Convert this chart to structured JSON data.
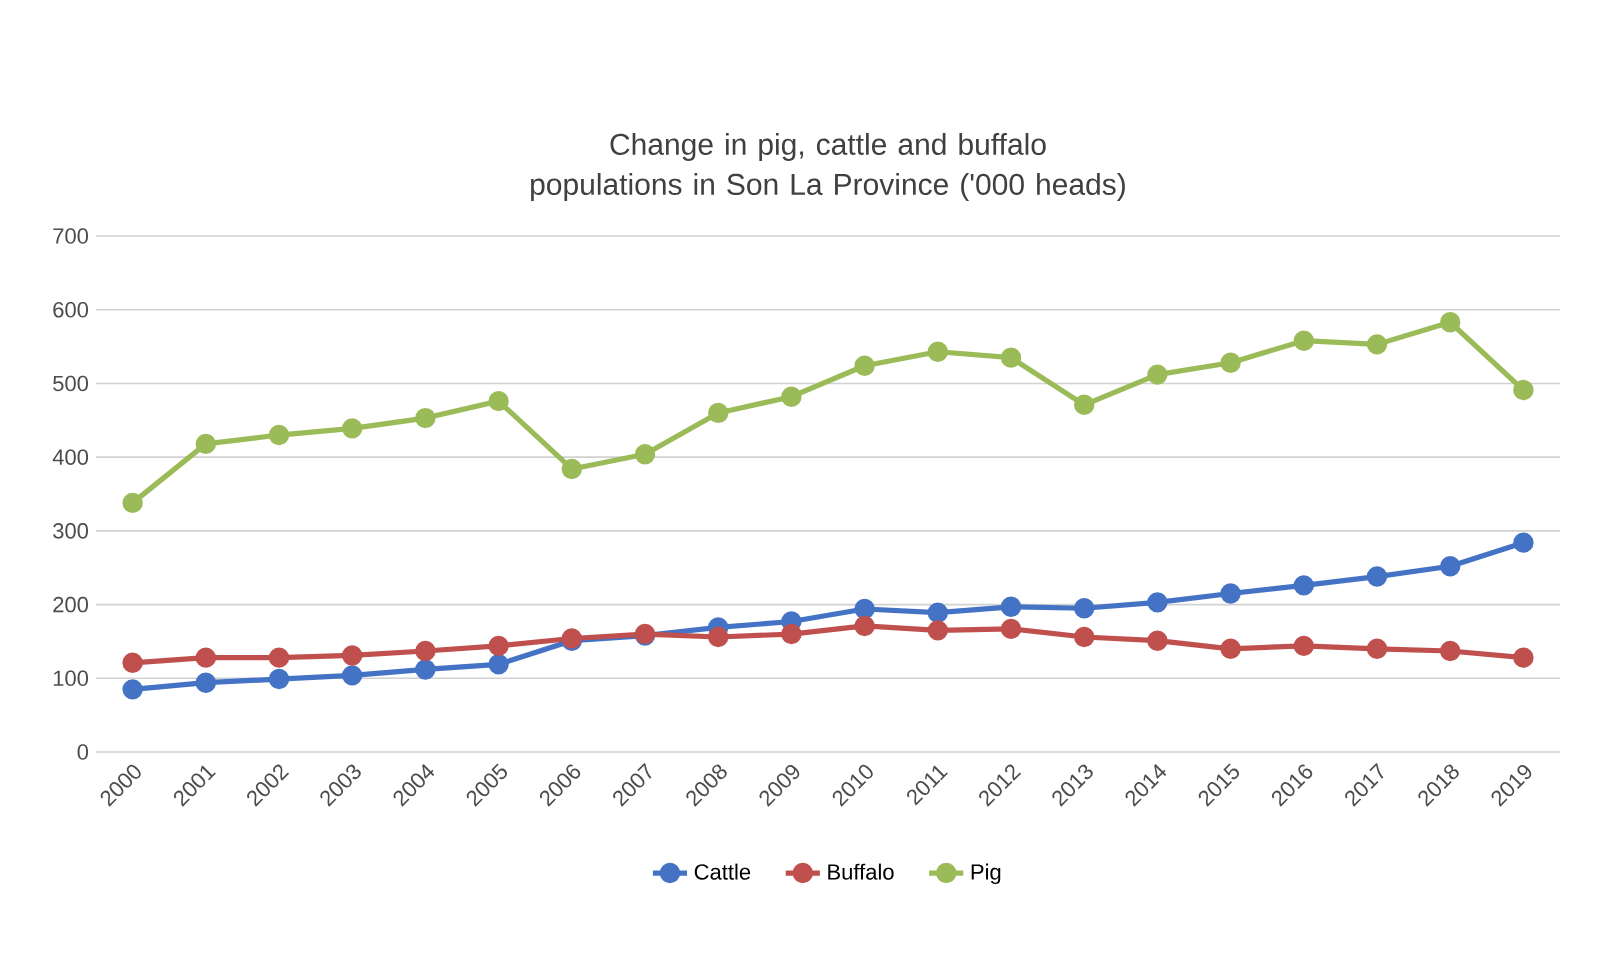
{
  "chart_data": {
    "type": "line",
    "title": "Change in pig, cattle and buffalo populations in Son La Province ('000 heads)",
    "categories": [
      "2000",
      "2001",
      "2002",
      "2003",
      "2004",
      "2005",
      "2006",
      "2007",
      "2008",
      "2009",
      "2010",
      "2011",
      "2012",
      "2013",
      "2014",
      "2015",
      "2016",
      "2017",
      "2018",
      "2019"
    ],
    "series": [
      {
        "name": "Cattle",
        "color": "#4472c4",
        "values": [
          85,
          94,
          99,
          104,
          112,
          119,
          151,
          158,
          169,
          177,
          194,
          189,
          197,
          195,
          203,
          215,
          226,
          238,
          252,
          284
        ]
      },
      {
        "name": "Buffalo",
        "color": "#c0504d",
        "values": [
          121,
          128,
          128,
          131,
          137,
          144,
          154,
          160,
          156,
          160,
          171,
          165,
          167,
          156,
          151,
          140,
          144,
          140,
          137,
          128
        ]
      },
      {
        "name": "Pig",
        "color": "#9bbb59",
        "values": [
          338,
          418,
          430,
          439,
          453,
          476,
          384,
          404,
          460,
          482,
          524,
          543,
          535,
          471,
          512,
          528,
          558,
          553,
          583,
          491
        ]
      }
    ],
    "ylim": [
      0,
      700
    ],
    "yticks": [
      0,
      100,
      200,
      300,
      400,
      500,
      600,
      700
    ],
    "grid": "y",
    "legend": "bottom",
    "marker": "circle",
    "line_style": "solid"
  }
}
